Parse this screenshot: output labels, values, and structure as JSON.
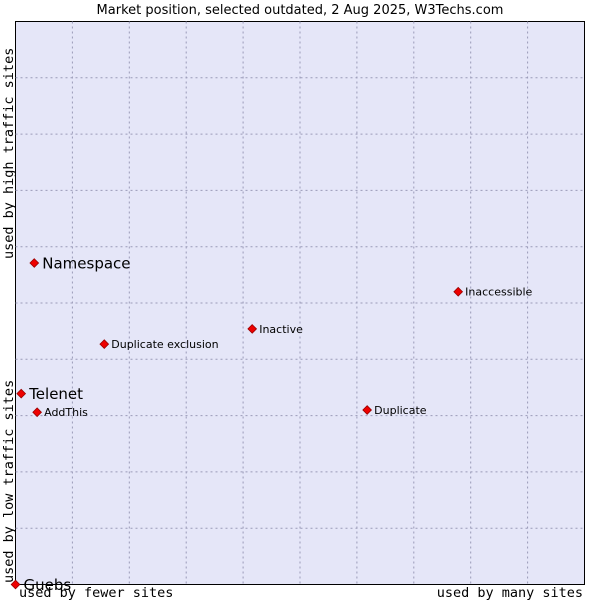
{
  "chart_data": {
    "type": "scatter",
    "title": "Market position, selected outdated, 2 Aug 2025, W3Techs.com",
    "xlabel_left": "used by fewer sites",
    "xlabel_right": "used by many sites",
    "ylabel_bottom": "used by low traffic sites",
    "ylabel_top": "used by high traffic sites",
    "xlim": [
      0,
      100
    ],
    "ylim": [
      0,
      100
    ],
    "grid": true,
    "points": [
      {
        "label": "Namespace",
        "x": 3.3,
        "y": 57.1,
        "emphasis": true
      },
      {
        "label": "Telenet",
        "x": 1.0,
        "y": 33.9,
        "emphasis": true
      },
      {
        "label": "Guebs",
        "x": 0.0,
        "y": 0.0,
        "emphasis": true
      },
      {
        "label": "Inaccessible",
        "x": 77.8,
        "y": 52.0,
        "emphasis": false
      },
      {
        "label": "Inactive",
        "x": 41.6,
        "y": 45.4,
        "emphasis": false
      },
      {
        "label": "Duplicate exclusion",
        "x": 15.6,
        "y": 42.7,
        "emphasis": false
      },
      {
        "label": "AddThis",
        "x": 3.8,
        "y": 30.6,
        "emphasis": false
      },
      {
        "label": "Duplicate",
        "x": 61.8,
        "y": 31.0,
        "emphasis": false
      }
    ]
  },
  "colors": {
    "plot_background": "#e5e6f8",
    "marker_fill": "#ee0000",
    "grid": "#9a9ab8"
  }
}
